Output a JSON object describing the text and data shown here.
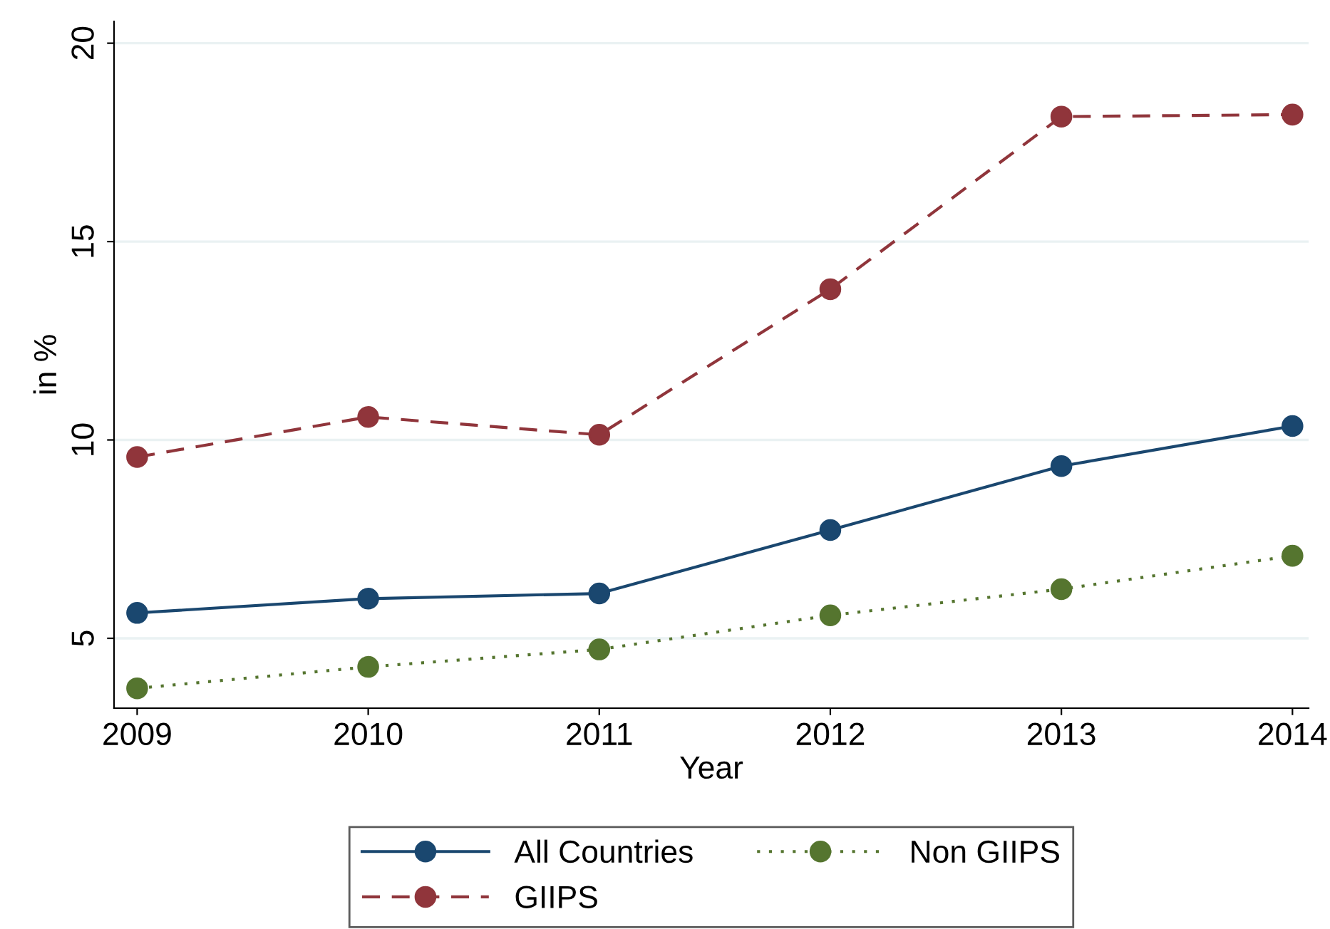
{
  "chart_data": {
    "type": "line",
    "xlabel": "Year",
    "ylabel": "in %",
    "x": [
      2009,
      2010,
      2011,
      2012,
      2013,
      2014
    ],
    "series": [
      {
        "name": "All Countries",
        "color": "#1a476f",
        "line_style": "solid",
        "values": [
          5.64,
          6.0,
          6.13,
          7.73,
          9.34,
          10.35
        ]
      },
      {
        "name": "GIIPS",
        "color": "#90353b",
        "line_style": "dashed",
        "values": [
          9.57,
          10.58,
          10.13,
          13.8,
          18.15,
          18.2
        ]
      },
      {
        "name": "Non GIIPS",
        "color": "#55752f",
        "line_style": "dotted",
        "values": [
          3.74,
          4.28,
          4.72,
          5.58,
          6.24,
          7.08
        ]
      }
    ],
    "marker": "circle",
    "xlim": [
      2008.9,
      2014.07
    ],
    "ylim": [
      3.24,
      20.55
    ],
    "xticks": [
      2009,
      2010,
      2011,
      2012,
      2013,
      2014
    ],
    "yticks": [
      5,
      10,
      15,
      20
    ],
    "grid": "y",
    "legend": "bottom"
  }
}
